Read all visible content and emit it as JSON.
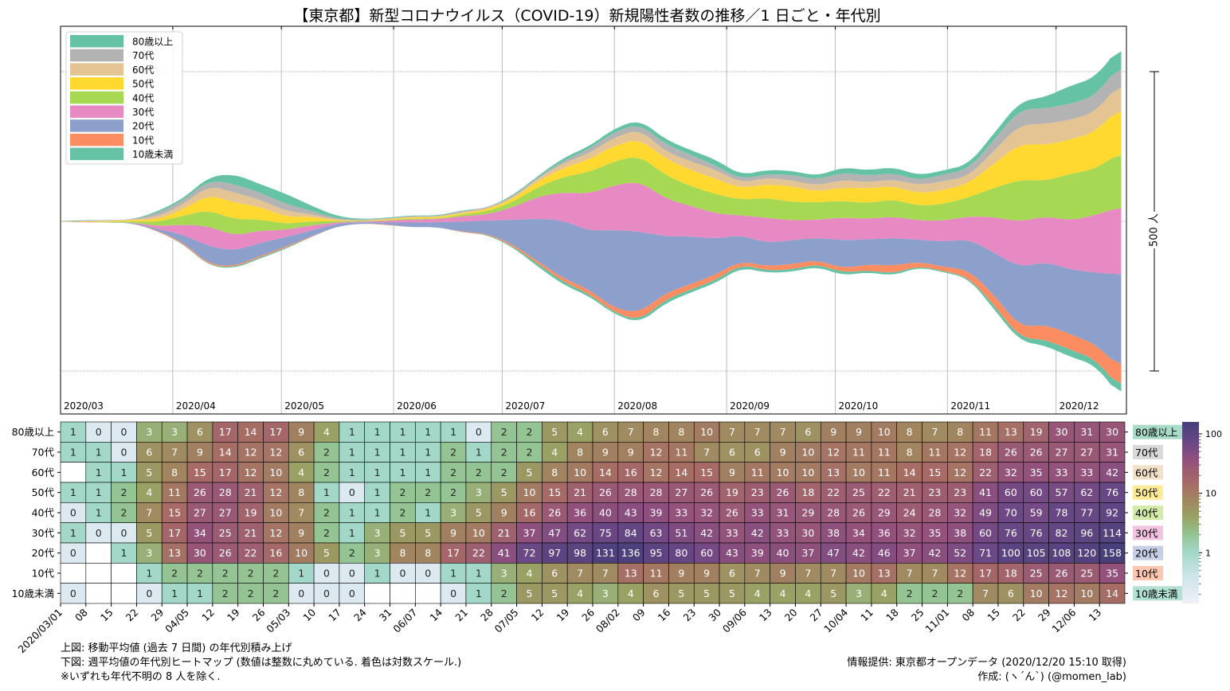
{
  "title": "【東京都】新型コロナウイルス（COVID-19）新規陽性者数の推移／1 日ごと・年代別",
  "notes_left": [
    "上図: 移動平均値 (過去 7 日間) の年代別積み上げ",
    "下図: 週平均値の年代別ヒートマップ (数値は整数に丸めている. 着色は対数スケール.)",
    "※いずれも年代不明の 8 人を除く."
  ],
  "notes_right": [
    "情報提供: 東京都オープンデータ (2020/12/20 15:10 取得)",
    "作成: (ヽ´ん`) (@momen_lab)"
  ],
  "chart_data": [
    {
      "type": "area",
      "title": "移動平均値 (過去 7 日間) の年代別積み上げ",
      "baseline": "symmetric",
      "month_labels": [
        "2020/03",
        "2020/04",
        "2020/05",
        "2020/06",
        "2020/07",
        "2020/08",
        "2020/09",
        "2020/10",
        "2020/11",
        "2020/12"
      ],
      "scale_bar_label": "500 人",
      "scale_bar_value": 500,
      "legend_position": "top-left",
      "series_source": "weekly means from heatmap, interpolated daily",
      "xrange": [
        "2020/03/01",
        "2020/12/19"
      ]
    },
    {
      "type": "heatmap",
      "title": "週平均値の年代別ヒートマップ",
      "groups": [
        "80歳以上",
        "70代",
        "60代",
        "50代",
        "40代",
        "30代",
        "20代",
        "10代",
        "10歳未満"
      ],
      "group_colors": [
        "#66c2a5",
        "#b3b3b3",
        "#e5c494",
        "#ffd92f",
        "#a6d854",
        "#e78ac3",
        "#8da0cb",
        "#fc8d62",
        "#66c2a5"
      ],
      "label_bg_colors": [
        "#a8dcc9",
        "#d9d9d9",
        "#f2e1c8",
        "#ffeb96",
        "#d2eba9",
        "#f3c4e1",
        "#c6cfe5",
        "#fdc6b0",
        "#b2e0d2"
      ],
      "weeks": [
        "2020/03/01",
        "08",
        "15",
        "22",
        "29",
        "04/05",
        "12",
        "19",
        "26",
        "05/03",
        "10",
        "17",
        "24",
        "31",
        "06/07",
        "14",
        "21",
        "28",
        "07/05",
        "12",
        "19",
        "26",
        "08/02",
        "09",
        "16",
        "23",
        "30",
        "09/06",
        "13",
        "20",
        "27",
        "10/04",
        "11",
        "18",
        "25",
        "11/01",
        "08",
        "15",
        "22",
        "29",
        "12/06",
        "13"
      ],
      "values": [
        [
          1,
          0,
          0,
          3,
          3,
          6,
          17,
          14,
          17,
          9,
          4,
          1,
          1,
          1,
          1,
          1,
          0,
          2,
          2,
          5,
          4,
          6,
          7,
          8,
          8,
          10,
          7,
          7,
          7,
          6,
          9,
          9,
          10,
          8,
          7,
          8,
          11,
          13,
          19,
          30,
          31,
          30
        ],
        [
          1,
          1,
          0,
          6,
          7,
          9,
          14,
          12,
          12,
          6,
          2,
          1,
          1,
          1,
          1,
          2,
          1,
          2,
          2,
          4,
          8,
          9,
          9,
          12,
          11,
          7,
          6,
          6,
          9,
          10,
          12,
          11,
          11,
          8,
          11,
          12,
          18,
          26,
          26,
          27,
          27,
          31
        ],
        [
          null,
          1,
          1,
          5,
          8,
          15,
          17,
          12,
          10,
          4,
          2,
          1,
          1,
          1,
          1,
          2,
          2,
          2,
          5,
          8,
          10,
          14,
          16,
          12,
          14,
          15,
          9,
          11,
          10,
          10,
          13,
          10,
          11,
          14,
          15,
          12,
          22,
          32,
          35,
          33,
          33,
          42
        ],
        [
          1,
          1,
          2,
          4,
          11,
          26,
          28,
          21,
          12,
          8,
          1,
          0,
          1,
          2,
          2,
          2,
          3,
          5,
          10,
          15,
          21,
          26,
          28,
          28,
          27,
          26,
          19,
          23,
          26,
          18,
          22,
          25,
          22,
          21,
          23,
          23,
          41,
          60,
          60,
          57,
          62,
          76
        ],
        [
          0,
          1,
          2,
          7,
          15,
          27,
          27,
          19,
          10,
          7,
          2,
          1,
          1,
          2,
          1,
          3,
          5,
          9,
          16,
          26,
          36,
          40,
          43,
          39,
          33,
          32,
          26,
          33,
          31,
          29,
          28,
          26,
          29,
          24,
          28,
          32,
          49,
          70,
          59,
          78,
          77,
          92
        ],
        [
          1,
          0,
          0,
          5,
          17,
          34,
          25,
          21,
          12,
          9,
          2,
          1,
          3,
          5,
          5,
          9,
          10,
          21,
          37,
          47,
          62,
          75,
          84,
          63,
          51,
          42,
          33,
          42,
          33,
          30,
          38,
          34,
          36,
          32,
          35,
          38,
          60,
          76,
          76,
          82,
          96,
          114
        ],
        [
          0,
          null,
          1,
          3,
          13,
          30,
          26,
          22,
          16,
          10,
          5,
          2,
          3,
          8,
          8,
          17,
          22,
          41,
          72,
          97,
          98,
          131,
          136,
          95,
          80,
          60,
          43,
          39,
          40,
          37,
          47,
          42,
          46,
          37,
          42,
          52,
          71,
          100,
          105,
          108,
          120,
          158
        ],
        [
          null,
          null,
          null,
          1,
          2,
          2,
          2,
          2,
          2,
          1,
          0,
          0,
          1,
          0,
          0,
          1,
          1,
          3,
          4,
          6,
          7,
          7,
          13,
          11,
          9,
          9,
          6,
          7,
          9,
          7,
          7,
          10,
          13,
          7,
          7,
          12,
          17,
          18,
          25,
          26,
          25,
          35
        ],
        [
          0,
          null,
          null,
          0,
          1,
          1,
          2,
          2,
          2,
          0,
          0,
          0,
          null,
          null,
          null,
          0,
          1,
          2,
          5,
          5,
          4,
          3,
          4,
          6,
          5,
          5,
          5,
          4,
          4,
          4,
          5,
          3,
          4,
          2,
          2,
          2,
          7,
          6,
          10,
          12,
          10,
          14
        ]
      ],
      "color_scale": "log",
      "colorbar_ticks": [
        "1",
        "10",
        "100"
      ],
      "colormap": [
        {
          "value": 0.14,
          "color": "#efeff9"
        },
        {
          "value": 0.4,
          "color": "#cfe4ea"
        },
        {
          "value": 1,
          "color": "#a3d8c8"
        },
        {
          "value": 2,
          "color": "#94c493"
        },
        {
          "value": 4,
          "color": "#9aa165"
        },
        {
          "value": 8,
          "color": "#a08560"
        },
        {
          "value": 15,
          "color": "#a76a66"
        },
        {
          "value": 35,
          "color": "#93517c"
        },
        {
          "value": 70,
          "color": "#6c4886"
        },
        {
          "value": 159,
          "color": "#463f7a"
        }
      ]
    }
  ]
}
